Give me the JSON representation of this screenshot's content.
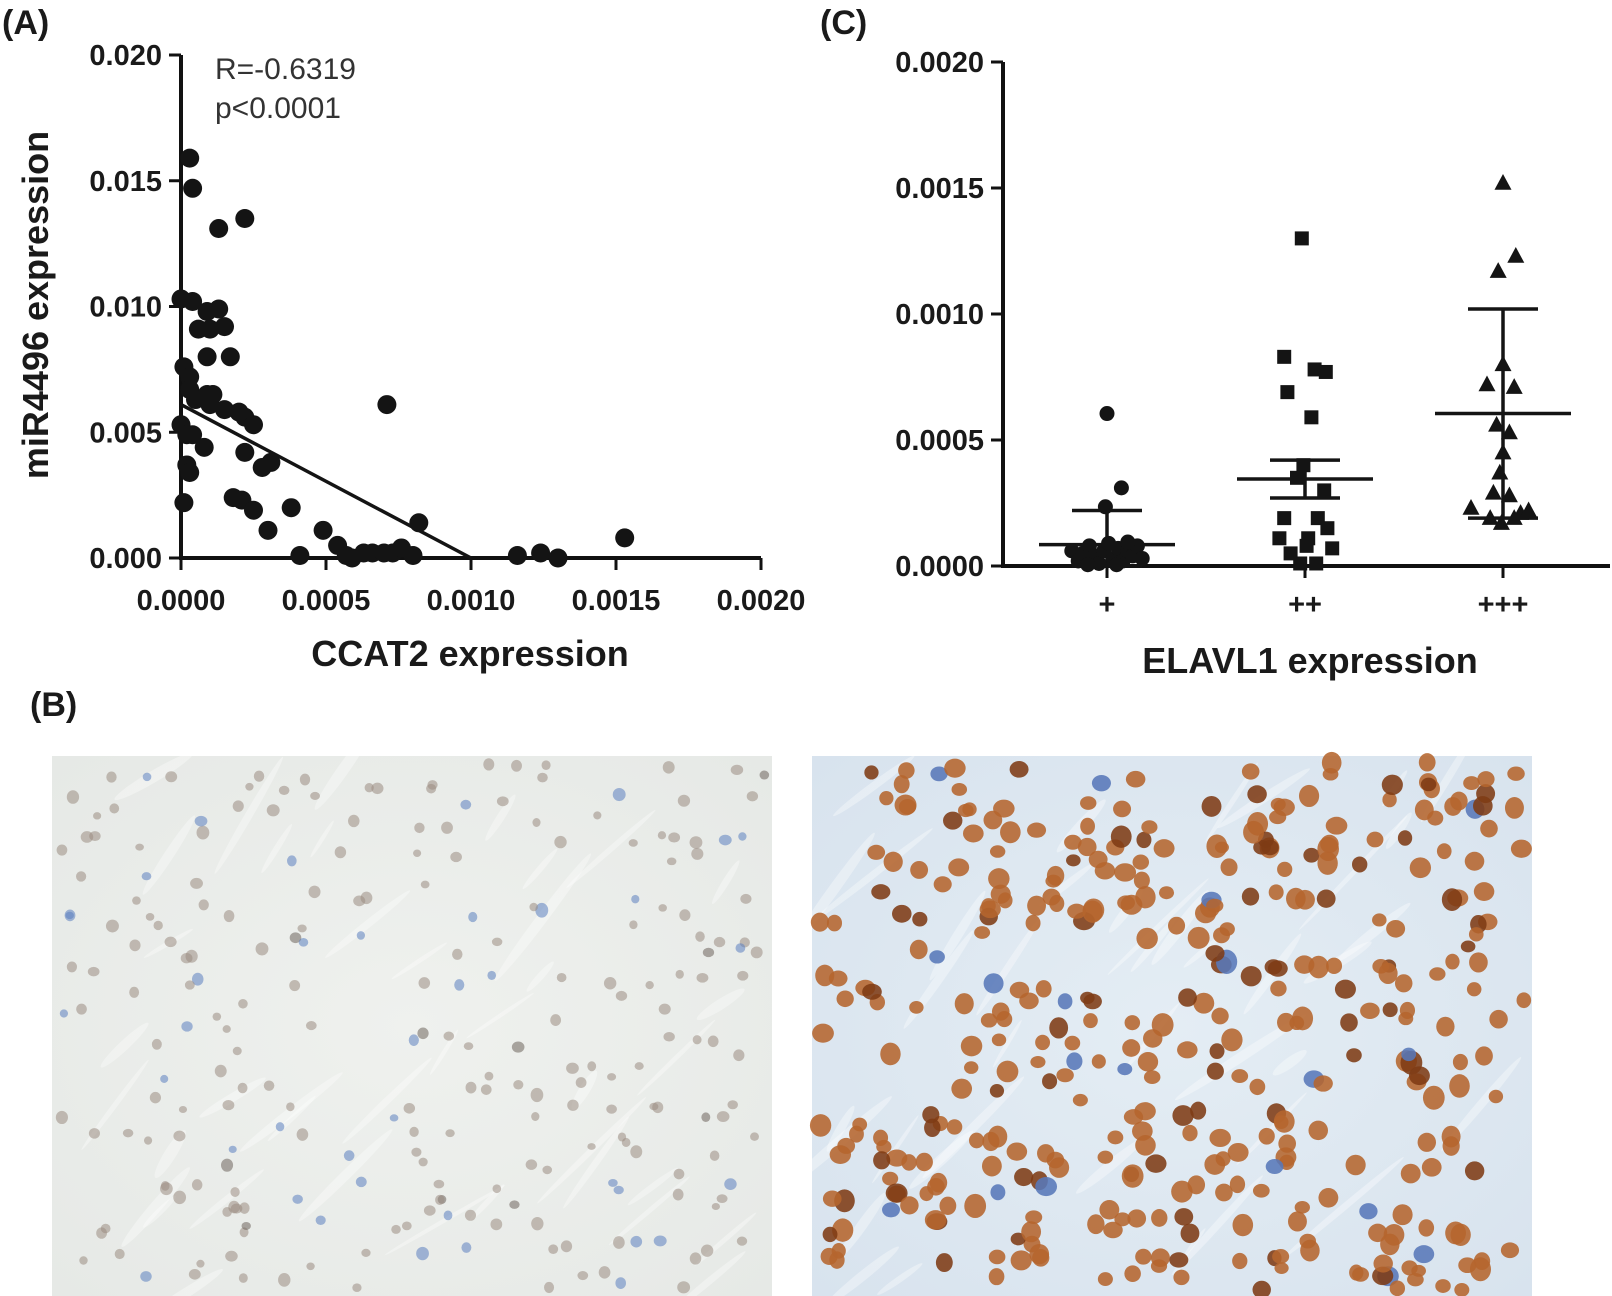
{
  "panels": {
    "a": {
      "label": "(A)"
    },
    "b": {
      "label": "(B)"
    },
    "c": {
      "label": "(C)"
    }
  },
  "colors": {
    "ink": "#141414",
    "tissue_low_background": "#eceeec",
    "tissue_low_nucleus": "#9a8d82",
    "tissue_low_hematoxylin": "#5b7fbf",
    "tissue_high_background": "#dfe9f1",
    "tissue_high_nucleus": "#b5652d",
    "tissue_high_dark_nucleus": "#7e3b15"
  },
  "chart_data": [
    {
      "id": "A",
      "type": "scatter",
      "xlabel": "CCAT2 expression",
      "ylabel": "miR4496 expression",
      "xlim": [
        0,
        0.002
      ],
      "ylim": [
        0,
        0.02
      ],
      "xticks": [
        "0.0000",
        "0.0005",
        "0.0010",
        "0.0015",
        "0.0020"
      ],
      "yticks": [
        "0.000",
        "0.005",
        "0.010",
        "0.015",
        "0.020"
      ],
      "annotations": [
        "R=-0.6319",
        "p<0.0001"
      ],
      "marker": "circle",
      "regression_line": {
        "x": [
          0.0,
          0.001
        ],
        "y": [
          0.0061,
          0.0
        ]
      },
      "points": [
        [
          3e-05,
          0.0159
        ],
        [
          4e-05,
          0.0147
        ],
        [
          0.00013,
          0.0131
        ],
        [
          0.00022,
          0.0135
        ],
        [
          0.0,
          0.0103
        ],
        [
          4e-05,
          0.0102
        ],
        [
          9e-05,
          0.0098
        ],
        [
          0.00013,
          0.0099
        ],
        [
          6e-05,
          0.0091
        ],
        [
          0.0001,
          0.0091
        ],
        [
          0.00015,
          0.0092
        ],
        [
          1e-05,
          0.0076
        ],
        [
          3e-05,
          0.0072
        ],
        [
          9e-05,
          0.008
        ],
        [
          0.00017,
          0.008
        ],
        [
          3e-05,
          0.0067
        ],
        [
          5e-05,
          0.0063
        ],
        [
          9e-05,
          0.0065
        ],
        [
          0.0001,
          0.0061
        ],
        [
          0.00011,
          0.0065
        ],
        [
          0.00015,
          0.0059
        ],
        [
          0.00022,
          0.0056
        ],
        [
          0.0002,
          0.0058
        ],
        [
          0.0,
          0.0053
        ],
        [
          2e-05,
          0.0049
        ],
        [
          4e-05,
          0.0049
        ],
        [
          8e-05,
          0.0044
        ],
        [
          0.00022,
          0.0042
        ],
        [
          0.00025,
          0.0053
        ],
        [
          0.00028,
          0.0036
        ],
        [
          0.00031,
          0.0038
        ],
        [
          2e-05,
          0.0037
        ],
        [
          3e-05,
          0.0034
        ],
        [
          1e-05,
          0.0022
        ],
        [
          0.00018,
          0.0024
        ],
        [
          0.00021,
          0.0023
        ],
        [
          0.00025,
          0.0019
        ],
        [
          0.0003,
          0.0011
        ],
        [
          0.00038,
          0.002
        ],
        [
          0.00041,
          0.0001
        ],
        [
          0.00049,
          0.0011
        ],
        [
          0.00054,
          0.0005
        ],
        [
          0.00057,
          0.0001
        ],
        [
          0.00059,
          0.0
        ],
        [
          0.00063,
          0.0002
        ],
        [
          0.00066,
          0.0002
        ],
        [
          0.0007,
          0.0002
        ],
        [
          0.00073,
          0.0002
        ],
        [
          0.00076,
          0.0004
        ],
        [
          0.0008,
          0.0001
        ],
        [
          0.00082,
          0.0014
        ],
        [
          0.00071,
          0.0061
        ],
        [
          0.00116,
          0.0001
        ],
        [
          0.00124,
          0.0002
        ],
        [
          0.0013,
          0.0
        ],
        [
          0.00153,
          0.0008
        ]
      ]
    },
    {
      "id": "C",
      "type": "scatter",
      "xlabel": "ELAVL1 expression",
      "ylabel": "",
      "categories": [
        "+",
        "++",
        "+++"
      ],
      "ylim": [
        0,
        0.002
      ],
      "yticks": [
        "0.0000",
        "0.0005",
        "0.0010",
        "0.0015",
        "0.0020"
      ],
      "series": [
        {
          "category": "+",
          "marker": "circle",
          "mean": 8.5e-05,
          "error_low": 0.0,
          "error_high": 0.00022,
          "points": [
            [
              -0.22,
              6e-05
            ],
            [
              -0.18,
              2e-05
            ],
            [
              -0.15,
              5e-05
            ],
            [
              -0.11,
              8e-05
            ],
            [
              -0.08,
              4e-05
            ],
            [
              -0.05,
              1e-05
            ],
            [
              -0.02,
              6e-05
            ],
            [
              0.01,
              9e-05
            ],
            [
              0.04,
              3e-05
            ],
            [
              0.07,
              7e-05
            ],
            [
              0.1,
              2e-05
            ],
            [
              0.13,
              6e-05
            ],
            [
              0.16,
              4e-05
            ],
            [
              0.19,
              8e-05
            ],
            [
              0.22,
              3e-05
            ],
            [
              -0.12,
              5e-06
            ],
            [
              0.06,
              5e-06
            ],
            [
              0.13,
              9.5e-05
            ],
            [
              -0.01,
              0.000235
            ],
            [
              0.0,
              0.000605
            ],
            [
              0.09,
              0.00031
            ]
          ]
        },
        {
          "category": "++",
          "marker": "square",
          "mean": 0.000345,
          "error_low": 0.00027,
          "error_high": 0.00042,
          "points": [
            [
              -0.02,
              0.0013
            ],
            [
              -0.13,
              0.00083
            ],
            [
              0.06,
              0.00078
            ],
            [
              0.13,
              0.00077
            ],
            [
              -0.11,
              0.00069
            ],
            [
              0.04,
              0.00059
            ],
            [
              -0.01,
              0.0004
            ],
            [
              -0.05,
              0.00035
            ],
            [
              0.12,
              0.0003
            ],
            [
              -0.13,
              0.00019
            ],
            [
              0.14,
              0.00015
            ],
            [
              -0.16,
              0.00011
            ],
            [
              0.08,
              0.00019
            ],
            [
              0.02,
              0.00011
            ],
            [
              0.17,
              7e-05
            ],
            [
              -0.09,
              5e-05
            ],
            [
              -0.03,
              1e-05
            ],
            [
              0.07,
              1e-05
            ],
            [
              0.01,
              8e-05
            ]
          ]
        },
        {
          "category": "+++",
          "marker": "triangle",
          "mean": 0.000605,
          "error_low": 0.00019,
          "error_high": 0.00102,
          "points": [
            [
              0.0,
              0.00152
            ],
            [
              0.08,
              0.00123
            ],
            [
              -0.03,
              0.00117
            ],
            [
              0.0,
              0.0008
            ],
            [
              -0.1,
              0.00072
            ],
            [
              0.07,
              0.00071
            ],
            [
              -0.04,
              0.00056
            ],
            [
              0.04,
              0.00053
            ],
            [
              0.0,
              0.00045
            ],
            [
              -0.02,
              0.00037
            ],
            [
              -0.06,
              0.00029
            ],
            [
              0.04,
              0.00028
            ],
            [
              -0.2,
              0.00023
            ],
            [
              -0.08,
              0.00019
            ],
            [
              0.11,
              0.00021
            ],
            [
              -0.01,
              0.00017
            ],
            [
              0.07,
              0.00019
            ],
            [
              0.16,
              0.00022
            ]
          ]
        }
      ]
    }
  ]
}
